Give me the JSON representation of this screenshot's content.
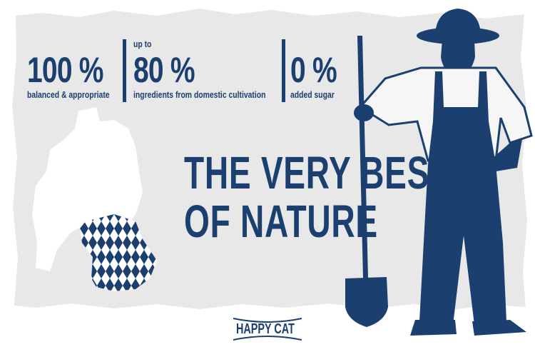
{
  "stats": [
    {
      "prefix": "",
      "value": "100 %",
      "caption": "balanced & appropriate"
    },
    {
      "prefix": "up to",
      "value": "80 %",
      "caption": "ingredients from domestic cultivation"
    },
    {
      "prefix": "",
      "value": "0 %",
      "caption": "added sugar"
    }
  ],
  "headline": {
    "line1": "THE VERY BEST",
    "line2": "OF NATURE"
  },
  "logo": {
    "text": "HAPPY CAT"
  },
  "colors": {
    "navy": "#1b3f6e",
    "panel": "#e8e8e9",
    "background": "#ffffff"
  },
  "images": {
    "map": "germany-map-with-bavaria-diamond-pattern",
    "figure": "farmer-with-shovel-silhouette"
  }
}
